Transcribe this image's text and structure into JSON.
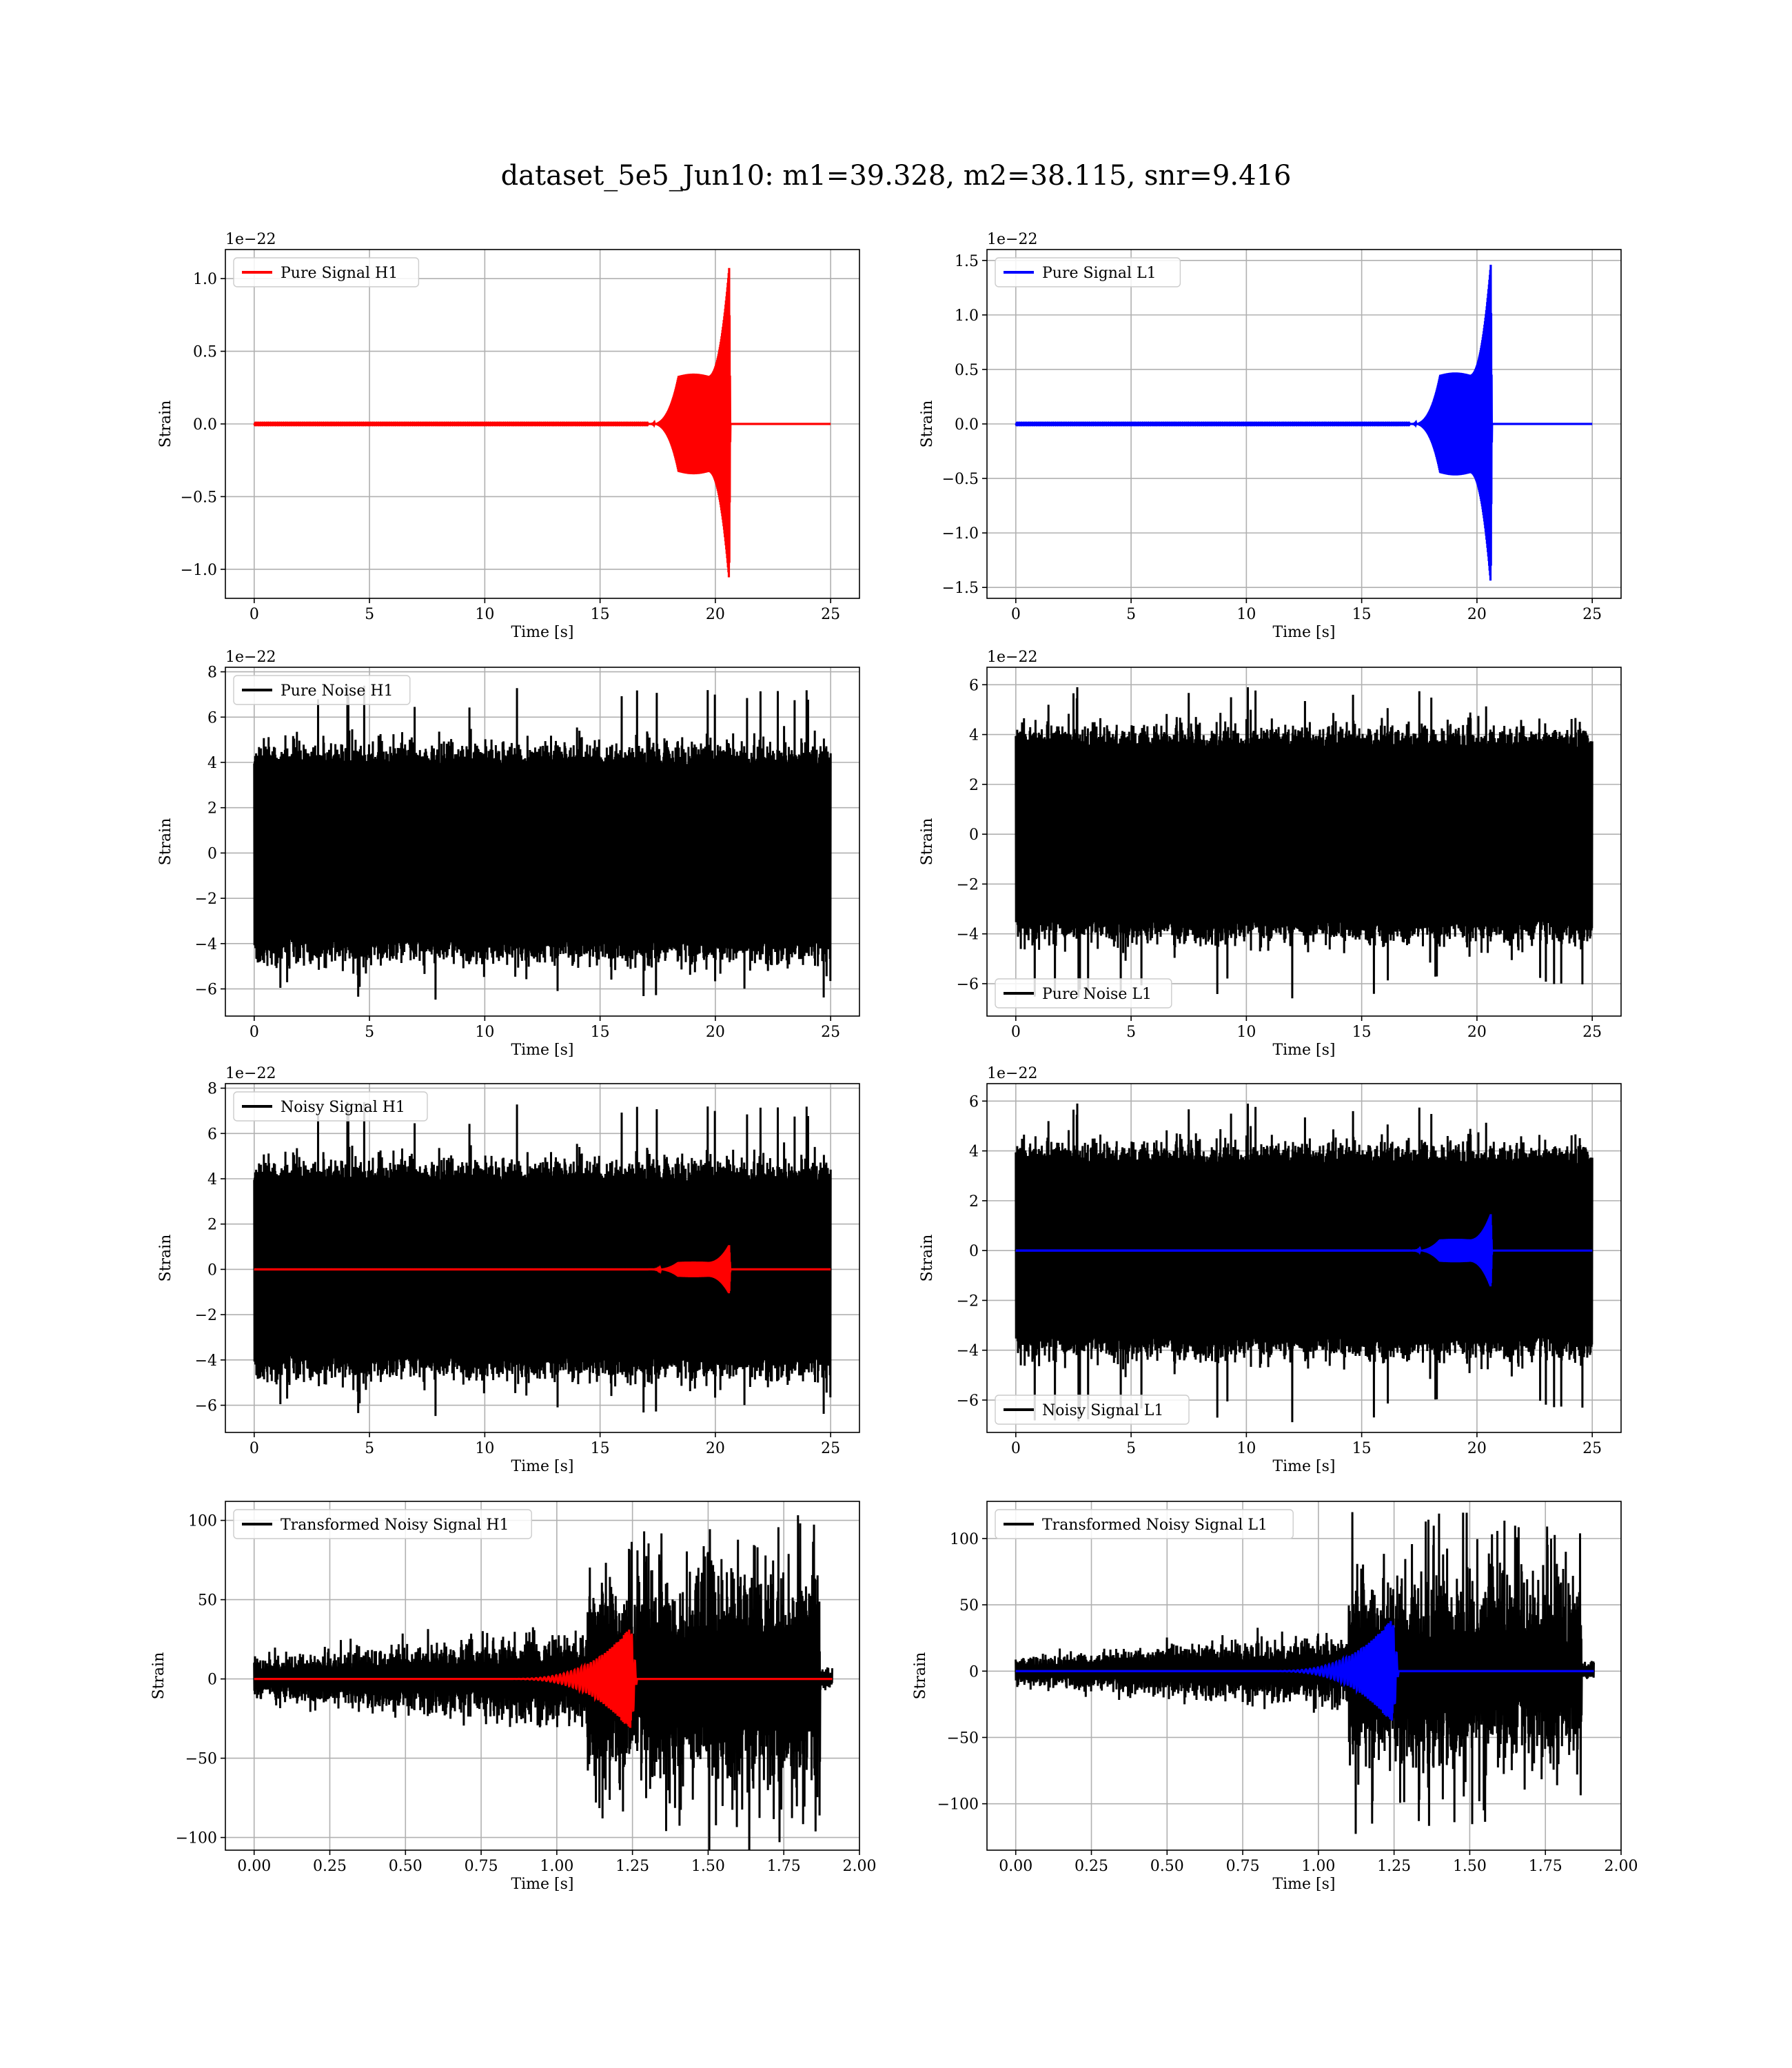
{
  "title": "dataset_5e5_Jun10: m1=39.328, m2=38.115, snr=9.416",
  "colors": {
    "h1_signal": "#ff0000",
    "l1_signal": "#0000ff",
    "noise": "#000000",
    "grid": "#b0b0b0"
  },
  "chart_data": [
    {
      "id": "pure-signal-h1",
      "type": "line",
      "xlabel": "Time [s]",
      "ylabel": "Strain",
      "offset_text": "1e−22",
      "xlim": [
        -1.25,
        26.25
      ],
      "ylim": [
        -1.2,
        1.2
      ],
      "xticks": [
        0,
        5,
        10,
        15,
        20,
        25
      ],
      "xtick_labels": [
        "0",
        "5",
        "10",
        "15",
        "20",
        "25"
      ],
      "yticks": [
        -1.0,
        -0.5,
        0.0,
        0.5,
        1.0
      ],
      "ytick_labels": [
        "−1.0",
        "−0.5",
        "0.0",
        "0.5",
        "1.0"
      ],
      "grid": true,
      "legend_loc": "upper left",
      "series": [
        {
          "name": "Pure Signal H1",
          "color": "#ff0000",
          "kind": "chirp",
          "t_start": 0,
          "t_end": 25,
          "t_merge": 20.6,
          "pre_amp": 0.33,
          "peak_amp": 1.08,
          "amp_scale": 1.0
        }
      ]
    },
    {
      "id": "pure-signal-l1",
      "type": "line",
      "xlabel": "Time [s]",
      "ylabel": "Strain",
      "offset_text": "1e−22",
      "xlim": [
        -1.25,
        26.25
      ],
      "ylim": [
        -1.6,
        1.6
      ],
      "xticks": [
        0,
        5,
        10,
        15,
        20,
        25
      ],
      "xtick_labels": [
        "0",
        "5",
        "10",
        "15",
        "20",
        "25"
      ],
      "yticks": [
        -1.5,
        -1.0,
        -0.5,
        0.0,
        0.5,
        1.0,
        1.5
      ],
      "ytick_labels": [
        "−1.5",
        "−1.0",
        "−0.5",
        "0.0",
        "0.5",
        "1.0",
        "1.5"
      ],
      "grid": true,
      "legend_loc": "upper left",
      "series": [
        {
          "name": "Pure Signal L1",
          "color": "#0000ff",
          "kind": "chirp",
          "t_start": 0,
          "t_end": 25,
          "t_merge": 20.6,
          "pre_amp": 0.45,
          "peak_amp": 1.47,
          "amp_scale": 1.0
        }
      ]
    },
    {
      "id": "pure-noise-h1",
      "type": "line",
      "xlabel": "Time [s]",
      "ylabel": "Strain",
      "offset_text": "1e−22",
      "xlim": [
        -1.25,
        26.25
      ],
      "ylim": [
        -7.2,
        8.2
      ],
      "xticks": [
        0,
        5,
        10,
        15,
        20,
        25
      ],
      "xtick_labels": [
        "0",
        "5",
        "10",
        "15",
        "20",
        "25"
      ],
      "yticks": [
        -6,
        -4,
        -2,
        0,
        2,
        4,
        6,
        8
      ],
      "ytick_labels": [
        "−6",
        "−4",
        "−2",
        "0",
        "2",
        "4",
        "6",
        "8"
      ],
      "grid": true,
      "legend_loc": "upper left",
      "series": [
        {
          "name": "Pure Noise H1",
          "color": "#000000",
          "kind": "noise",
          "t_start": 0,
          "t_end": 25,
          "core": 3.8,
          "peak_max": 7.5,
          "peak_min": -6.5,
          "seed": 11
        }
      ]
    },
    {
      "id": "pure-noise-l1",
      "type": "line",
      "xlabel": "Time [s]",
      "ylabel": "Strain",
      "offset_text": "1e−22",
      "xlim": [
        -1.25,
        26.25
      ],
      "ylim": [
        -7.3,
        6.7
      ],
      "xticks": [
        0,
        5,
        10,
        15,
        20,
        25
      ],
      "xtick_labels": [
        "0",
        "5",
        "10",
        "15",
        "20",
        "25"
      ],
      "yticks": [
        -6,
        -4,
        -2,
        0,
        2,
        4,
        6
      ],
      "ytick_labels": [
        "−6",
        "−4",
        "−2",
        "0",
        "2",
        "4",
        "6"
      ],
      "grid": true,
      "legend_loc": "lower left",
      "series": [
        {
          "name": "Pure Noise L1",
          "color": "#000000",
          "kind": "noise",
          "t_start": 0,
          "t_end": 25,
          "core": 3.4,
          "peak_max": 6.0,
          "peak_min": -6.6,
          "seed": 23
        }
      ]
    },
    {
      "id": "noisy-signal-h1",
      "type": "line",
      "xlabel": "Time [s]",
      "ylabel": "Strain",
      "offset_text": "1e−22",
      "xlim": [
        -1.25,
        26.25
      ],
      "ylim": [
        -7.2,
        8.2
      ],
      "xticks": [
        0,
        5,
        10,
        15,
        20,
        25
      ],
      "xtick_labels": [
        "0",
        "5",
        "10",
        "15",
        "20",
        "25"
      ],
      "yticks": [
        -6,
        -4,
        -2,
        0,
        2,
        4,
        6,
        8
      ],
      "ytick_labels": [
        "−6",
        "−4",
        "−2",
        "0",
        "2",
        "4",
        "6",
        "8"
      ],
      "grid": true,
      "legend_loc": "upper left",
      "series": [
        {
          "name": "Noisy Signal H1",
          "color": "#000000",
          "kind": "noise",
          "t_start": 0,
          "t_end": 25,
          "core": 3.8,
          "peak_max": 7.5,
          "peak_min": -6.5,
          "seed": 11
        },
        {
          "color": "#ff0000",
          "kind": "chirp",
          "t_start": 0,
          "t_end": 25,
          "t_merge": 20.6,
          "pre_amp": 0.33,
          "peak_amp": 1.08,
          "amp_scale": 1.0
        }
      ]
    },
    {
      "id": "noisy-signal-l1",
      "type": "line",
      "xlabel": "Time [s]",
      "ylabel": "Strain",
      "offset_text": "1e−22",
      "xlim": [
        -1.25,
        26.25
      ],
      "ylim": [
        -7.3,
        6.7
      ],
      "xticks": [
        0,
        5,
        10,
        15,
        20,
        25
      ],
      "xtick_labels": [
        "0",
        "5",
        "10",
        "15",
        "20",
        "25"
      ],
      "yticks": [
        -6,
        -4,
        -2,
        0,
        2,
        4,
        6
      ],
      "ytick_labels": [
        "−6",
        "−4",
        "−2",
        "0",
        "2",
        "4",
        "6"
      ],
      "grid": true,
      "legend_loc": "lower left",
      "series": [
        {
          "name": "Noisy Signal L1",
          "color": "#000000",
          "kind": "noise",
          "t_start": 0,
          "t_end": 25,
          "core": 3.4,
          "peak_max": 6.0,
          "peak_min": -6.9,
          "seed": 23
        },
        {
          "color": "#0000ff",
          "kind": "chirp",
          "t_start": 0,
          "t_end": 25,
          "t_merge": 20.6,
          "pre_amp": 0.45,
          "peak_amp": 1.47,
          "amp_scale": 1.0
        }
      ]
    },
    {
      "id": "transformed-noisy-signal-h1",
      "type": "line",
      "xlabel": "Time [s]",
      "ylabel": "Strain",
      "offset_text": "",
      "xlim": [
        -0.095,
        2.0
      ],
      "ylim": [
        -108,
        112
      ],
      "xticks": [
        0,
        0.25,
        0.5,
        0.75,
        1.0,
        1.25,
        1.5,
        1.75,
        2.0
      ],
      "xtick_labels": [
        "0.00",
        "0.25",
        "0.50",
        "0.75",
        "1.00",
        "1.25",
        "1.50",
        "1.75",
        "2.00"
      ],
      "yticks": [
        -100,
        -50,
        0,
        50,
        100
      ],
      "ytick_labels": [
        "−100",
        "−50",
        "0",
        "50",
        "100"
      ],
      "grid": true,
      "legend_loc": "upper left",
      "series": [
        {
          "name": "Transformed Noisy Signal H1",
          "color": "#000000",
          "kind": "whitened",
          "t_start": 0,
          "t_end": 1.91,
          "t_step": 1.1,
          "t_end_loud": 1.87,
          "low_amp": 8,
          "high_amp": 55,
          "peak_max": 100,
          "peak_min": -103,
          "seed": 7
        },
        {
          "color": "#ff0000",
          "kind": "wchirp",
          "t_start": 0,
          "t_end": 1.91,
          "t_merge": 1.245,
          "peak_amp": 33
        }
      ]
    },
    {
      "id": "transformed-noisy-signal-l1",
      "type": "line",
      "xlabel": "Time [s]",
      "ylabel": "Strain",
      "offset_text": "",
      "xlim": [
        -0.095,
        2.0
      ],
      "ylim": [
        -135,
        128
      ],
      "xticks": [
        0,
        0.25,
        0.5,
        0.75,
        1.0,
        1.25,
        1.5,
        1.75,
        2.0
      ],
      "xtick_labels": [
        "0.00",
        "0.25",
        "0.50",
        "0.75",
        "1.00",
        "1.25",
        "1.50",
        "1.75",
        "2.00"
      ],
      "yticks": [
        -100,
        -50,
        0,
        50,
        100
      ],
      "ytick_labels": [
        "−100",
        "−50",
        "0",
        "50",
        "100"
      ],
      "grid": true,
      "legend_loc": "upper left",
      "series": [
        {
          "name": "Transformed Noisy Signal L1",
          "color": "#000000",
          "kind": "whitened",
          "t_start": 0,
          "t_end": 1.91,
          "t_step": 1.1,
          "t_end_loud": 1.87,
          "low_amp": 7,
          "high_amp": 55,
          "peak_max": 120,
          "peak_min": -120,
          "seed": 31
        },
        {
          "color": "#0000ff",
          "kind": "wchirp",
          "t_start": 0,
          "t_end": 1.91,
          "t_merge": 1.245,
          "peak_amp": 40
        }
      ]
    }
  ]
}
